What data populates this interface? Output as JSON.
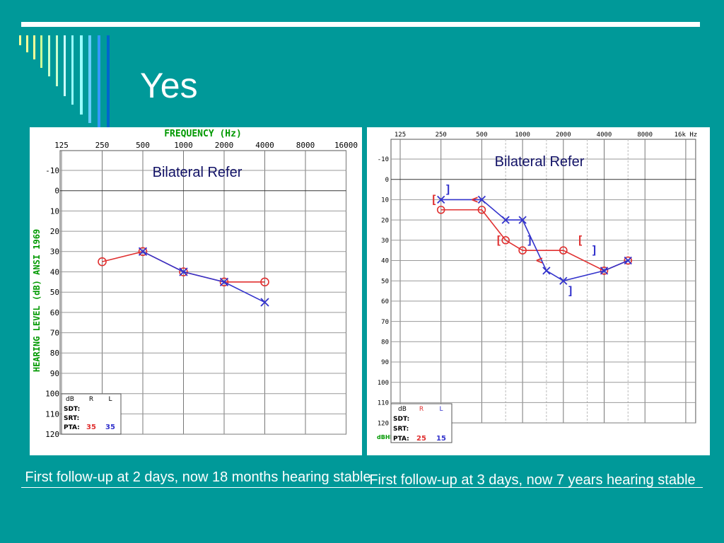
{
  "slide": {
    "title": "Yes",
    "caption_left": "First follow-up at 2 days, now 18 months hearing stable",
    "caption_right": "First follow-up at 3 days, now 7 years hearing stable"
  },
  "colors": {
    "background": "#009999",
    "right_ear": "#e03030",
    "left_ear": "#3333cc",
    "title_green": "#009900"
  },
  "chart_data": [
    {
      "type": "line",
      "title": "FREQUENCY (Hz)",
      "xlabel": "FREQUENCY (Hz)",
      "ylabel": "HEARING LEVEL (dB) ANSI 1969",
      "annotation": "Bilateral Refer",
      "x_ticks": [
        "125",
        "250",
        "500",
        "1000",
        "2000",
        "4000",
        "8000",
        "16000"
      ],
      "y_ticks": [
        "-10",
        "0",
        "10",
        "20",
        "30",
        "40",
        "50",
        "60",
        "70",
        "80",
        "90",
        "100",
        "110",
        "120"
      ],
      "ylim": [
        -20,
        120
      ],
      "y_inverted": true,
      "grid": true,
      "series": [
        {
          "name": "R",
          "marker": "circle",
          "x": [
            250,
            500,
            1000,
            2000,
            4000
          ],
          "values": [
            35,
            30,
            40,
            45,
            45
          ]
        },
        {
          "name": "L",
          "marker": "cross",
          "x": [
            500,
            1000,
            2000,
            4000
          ],
          "values": [
            30,
            40,
            45,
            55
          ]
        }
      ],
      "table": {
        "header": [
          "dB",
          "R",
          "L"
        ],
        "rows": [
          {
            "label": "SDT:",
            "r": "",
            "l": ""
          },
          {
            "label": "SRT:",
            "r": "",
            "l": ""
          },
          {
            "label": "PTA:",
            "r": "35",
            "l": "35"
          }
        ]
      }
    },
    {
      "type": "line",
      "annotation": "Bilateral Refer",
      "ylabel": "dBHL",
      "x_ticks": [
        "125",
        "250",
        "500",
        "1000",
        "2000",
        "4000",
        "8000",
        "16k Hz"
      ],
      "y_ticks": [
        "-10",
        "0",
        "10",
        "20",
        "30",
        "40",
        "50",
        "60",
        "70",
        "80",
        "90",
        "100",
        "110",
        "120"
      ],
      "ylim": [
        -20,
        120
      ],
      "y_inverted": true,
      "grid": true,
      "series": [
        {
          "name": "R",
          "marker": "circle",
          "x": [
            250,
            500,
            750,
            1000,
            2000,
            4000,
            6000
          ],
          "values": [
            15,
            15,
            30,
            35,
            35,
            45,
            40
          ]
        },
        {
          "name": "L",
          "marker": "cross",
          "x": [
            250,
            500,
            750,
            1000,
            1500,
            2000,
            4000,
            6000
          ],
          "values": [
            10,
            10,
            20,
            20,
            45,
            50,
            45,
            40
          ]
        }
      ],
      "bone_conduction": {
        "R": [
          {
            "symbol": "[",
            "x": 250,
            "y": 10
          },
          {
            "symbol": "<",
            "x": 500,
            "y": 10
          },
          {
            "symbol": "[",
            "x": 750,
            "y": 30
          },
          {
            "symbol": "<",
            "x": 1500,
            "y": 40
          },
          {
            "symbol": "[",
            "x": 3000,
            "y": 30
          }
        ],
        "L": [
          {
            "symbol": "]",
            "x": 250,
            "y": 5
          },
          {
            "symbol": "]",
            "x": 1000,
            "y": 30
          },
          {
            "symbol": "]",
            "x": 2000,
            "y": 55
          },
          {
            "symbol": "]",
            "x": 3000,
            "y": 35
          }
        ]
      },
      "table": {
        "header": [
          "dB",
          "R",
          "L"
        ],
        "rows": [
          {
            "label": "SDT:",
            "r": "",
            "l": ""
          },
          {
            "label": "SRT:",
            "r": "",
            "l": ""
          },
          {
            "label": "PTA:",
            "r": "25",
            "l": "15"
          }
        ]
      }
    }
  ]
}
